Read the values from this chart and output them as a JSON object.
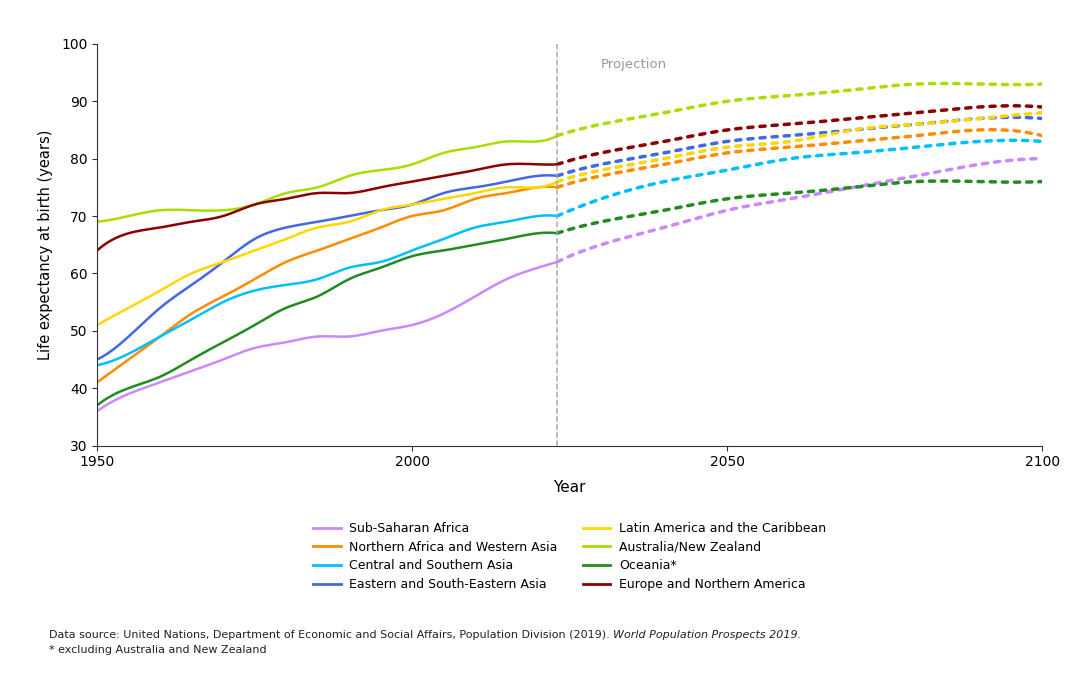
{
  "regions": [
    "Sub-Saharan Africa",
    "Northern Africa and Western Asia",
    "Central and Southern Asia",
    "Eastern and South-Eastern Asia",
    "Latin America and the Caribbean",
    "Australia/New Zealand",
    "Oceania*",
    "Europe and Northern America"
  ],
  "colors": [
    "#CC88FF",
    "#FF8C00",
    "#00BFFF",
    "#4169E1",
    "#FFD700",
    "#AADD00",
    "#228B22",
    "#8B0000"
  ],
  "projection_year": 2023,
  "historical_years": [
    1950,
    1955,
    1960,
    1965,
    1970,
    1975,
    1980,
    1985,
    1990,
    1995,
    2000,
    2005,
    2010,
    2015,
    2020,
    2023
  ],
  "projection_years": [
    2023,
    2030,
    2040,
    2050,
    2060,
    2070,
    2080,
    2090,
    2100
  ],
  "historical_data": {
    "Sub-Saharan Africa": [
      36,
      39,
      41,
      43,
      45,
      47,
      48,
      49,
      49,
      50,
      51,
      53,
      56,
      59,
      61,
      62
    ],
    "Northern Africa and Western Asia": [
      41,
      45,
      49,
      53,
      56,
      59,
      62,
      64,
      66,
      68,
      70,
      71,
      73,
      74,
      75,
      75
    ],
    "Central and Southern Asia": [
      44,
      46,
      49,
      52,
      55,
      57,
      58,
      59,
      61,
      62,
      64,
      66,
      68,
      69,
      70,
      70
    ],
    "Eastern and South-Eastern Asia": [
      45,
      49,
      54,
      58,
      62,
      66,
      68,
      69,
      70,
      71,
      72,
      74,
      75,
      76,
      77,
      77
    ],
    "Latin America and the Caribbean": [
      51,
      54,
      57,
      60,
      62,
      64,
      66,
      68,
      69,
      71,
      72,
      73,
      74,
      75,
      75,
      76
    ],
    "Australia/New Zealand": [
      69,
      70,
      71,
      71,
      71,
      72,
      74,
      75,
      77,
      78,
      79,
      81,
      82,
      83,
      83,
      84
    ],
    "Oceania*": [
      37,
      40,
      42,
      45,
      48,
      51,
      54,
      56,
      59,
      61,
      63,
      64,
      65,
      66,
      67,
      67
    ],
    "Europe and Northern America": [
      64,
      67,
      68,
      69,
      70,
      72,
      73,
      74,
      74,
      75,
      76,
      77,
      78,
      79,
      79,
      79
    ]
  },
  "projection_data": {
    "Sub-Saharan Africa": [
      62,
      65,
      68,
      71,
      73,
      75,
      77,
      79,
      80
    ],
    "Northern Africa and Western Asia": [
      75,
      77,
      79,
      81,
      82,
      83,
      84,
      85,
      84
    ],
    "Central and Southern Asia": [
      70,
      73,
      76,
      78,
      80,
      81,
      82,
      83,
      83
    ],
    "Eastern and South-Eastern Asia": [
      77,
      79,
      81,
      83,
      84,
      85,
      86,
      87,
      87
    ],
    "Latin America and the Caribbean": [
      76,
      78,
      80,
      82,
      83,
      85,
      86,
      87,
      88
    ],
    "Australia/New Zealand": [
      84,
      86,
      88,
      90,
      91,
      92,
      93,
      93,
      93
    ],
    "Oceania*": [
      67,
      69,
      71,
      73,
      74,
      75,
      76,
      76,
      76
    ],
    "Europe and Northern America": [
      79,
      81,
      83,
      85,
      86,
      87,
      88,
      89,
      89
    ]
  },
  "ylabel": "Life expectancy at birth (years)",
  "xlabel": "Year",
  "ylim": [
    30,
    100
  ],
  "yticks": [
    30,
    40,
    50,
    60,
    70,
    80,
    90,
    100
  ],
  "xlim": [
    1950,
    2100
  ],
  "xticks": [
    1950,
    2000,
    2050,
    2100
  ],
  "projection_label": "Projection",
  "fn1_pre": "Data source: United Nations, Department of Economic and Social Affairs, Population Division (2019). ",
  "fn1_italic": "World Population Prospects 2019.",
  "fn2": "* excluding Australia and New Zealand",
  "bg_color": "#FFFFFF"
}
